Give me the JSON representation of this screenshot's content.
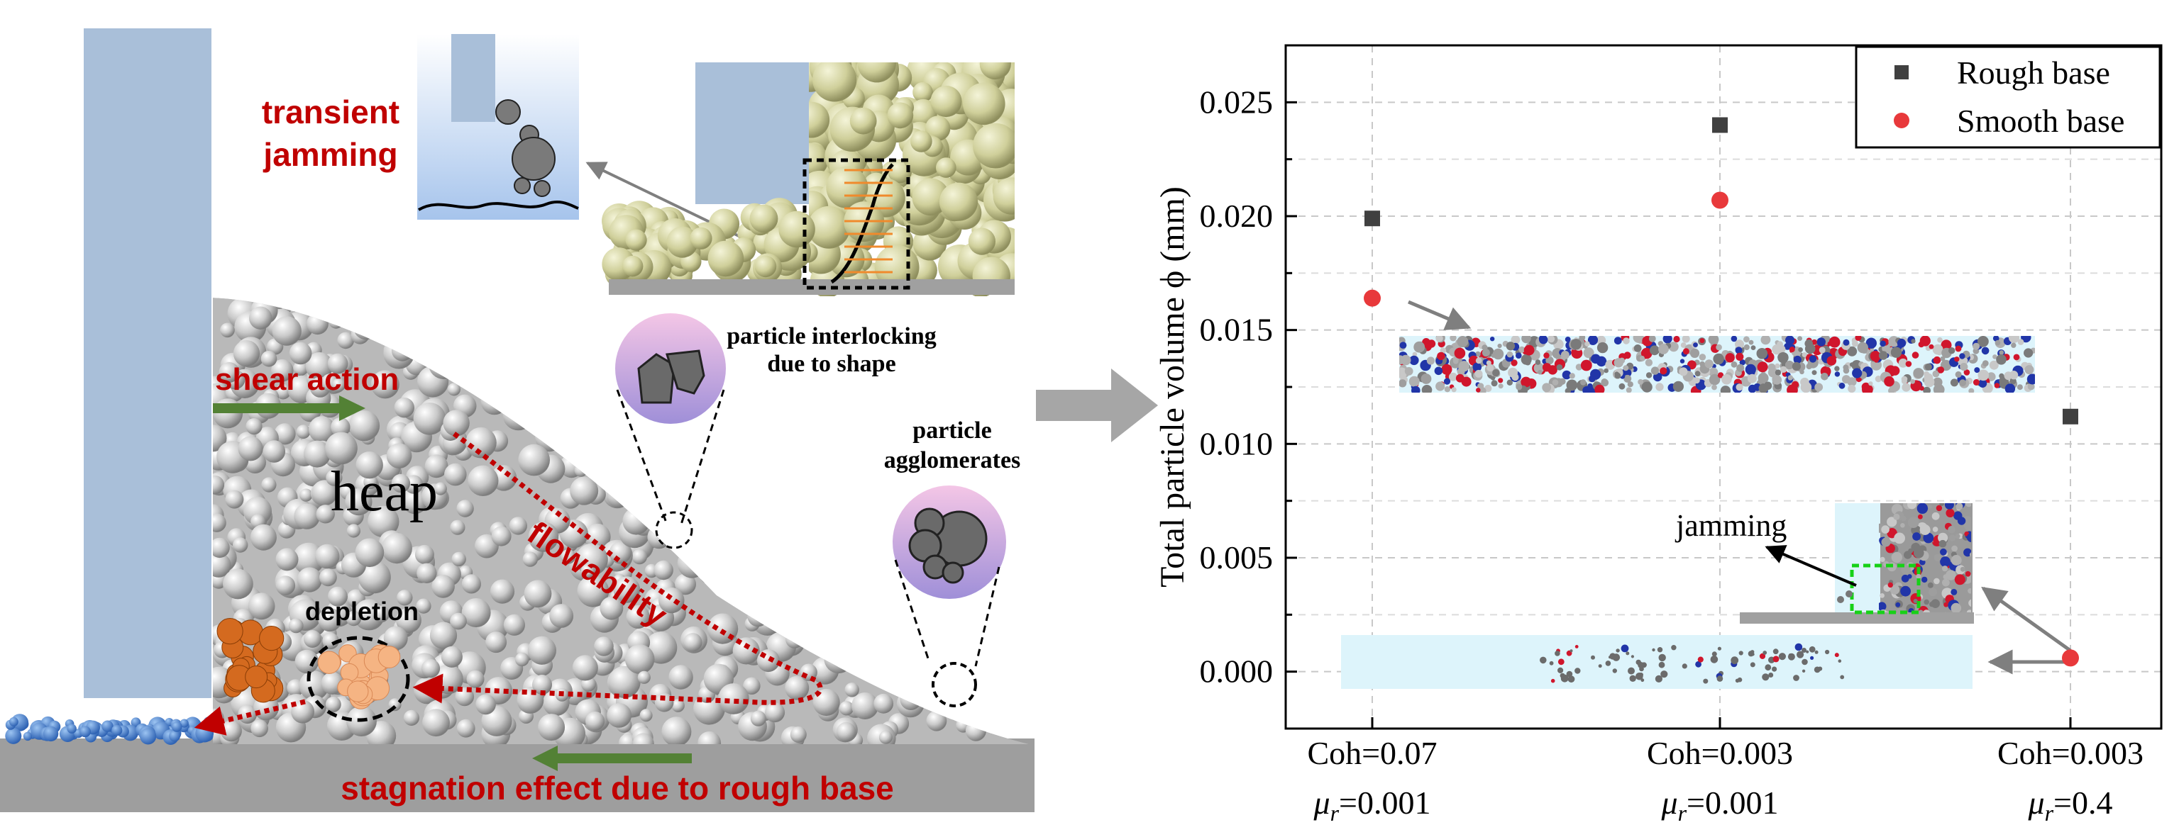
{
  "left_panel": {
    "transient_jamming": [
      "transient",
      "jamming"
    ],
    "shear_action": "shear action",
    "heap": "heap",
    "flowability": "flowability",
    "depletion": "depletion",
    "interlocking": [
      "particle interlocking",
      "due to shape"
    ],
    "agglomerates": [
      "particle",
      "agglomerates"
    ],
    "stagnation": "stagnation effect due to rough base"
  },
  "colors": {
    "red_text": "#c00000",
    "green_arrow": "#538135",
    "wall_blue": "#a9bfd9",
    "base_gray": "#9e9e9e",
    "rough_marker": "#404040",
    "smooth_marker": "#e8393b",
    "inset_cyan": "#ddf4fb"
  },
  "chart_data": {
    "type": "scatter",
    "ylabel": "Total particle volume ϕ (mm)",
    "categories": [
      {
        "line1": "Coh=0.07",
        "mu": "μ",
        "sub": "r",
        "rest": "=0.001"
      },
      {
        "line1": "Coh=0.003",
        "mu": "μ",
        "sub": "r",
        "rest": "=0.001"
      },
      {
        "line1": "Coh=0.003",
        "mu": "μ",
        "sub": "r",
        "rest": "=0.4"
      }
    ],
    "yticks": [
      "0.000",
      "0.005",
      "0.010",
      "0.015",
      "0.020",
      "0.025"
    ],
    "ylim": [
      -0.0025,
      0.0275
    ],
    "series": [
      {
        "name": "Rough base",
        "marker": "square",
        "color": "#404040",
        "values": [
          0.0199,
          0.024,
          0.0112
        ]
      },
      {
        "name": "Smooth base",
        "marker": "circle",
        "color": "#e8393b",
        "values": [
          0.0164,
          0.0207,
          0.0006
        ]
      }
    ],
    "legend_position": "top-right",
    "grid": true,
    "annotation": "jamming"
  }
}
